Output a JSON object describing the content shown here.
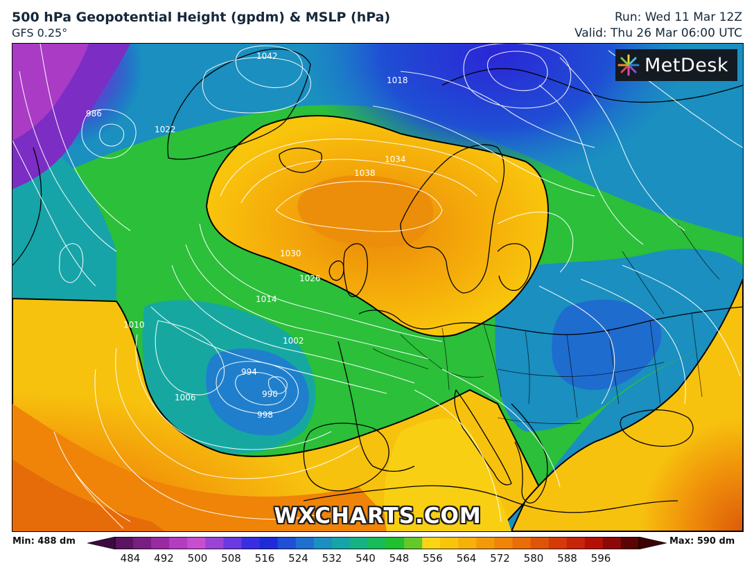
{
  "header": {
    "title": "500 hPa Geopotential Height (gpdm) & MSLP (hPa)",
    "model": "GFS 0.25°",
    "run": "Run: Wed 11 Mar 12Z",
    "valid": "Valid: Thu 26 Mar 06:00 UTC"
  },
  "logo": {
    "text": "MetDesk"
  },
  "watermark": "WXCHARTS.COM",
  "legend": {
    "min_label": "Min: 488 dm",
    "max_label": "Max: 590 dm",
    "ticks": [
      "484",
      "492",
      "500",
      "508",
      "516",
      "524",
      "532",
      "540",
      "548",
      "556",
      "564",
      "572",
      "580",
      "588",
      "596"
    ],
    "colors": [
      "#5a1460",
      "#7a1f82",
      "#9b2aa2",
      "#b53cc0",
      "#c84ed0",
      "#9a44d6",
      "#6a3ae0",
      "#3a2fe0",
      "#1f2bd8",
      "#1e4fd6",
      "#1f6fcf",
      "#1a8fc0",
      "#16a4a8",
      "#15b286",
      "#18bb5a",
      "#20c02e",
      "#64c82a",
      "#f8d515",
      "#f9c40c",
      "#f7b00a",
      "#f39a0a",
      "#ef8409",
      "#e96d09",
      "#e05409",
      "#d53b08",
      "#c82408",
      "#b21206",
      "#8e0808",
      "#5a0404"
    ],
    "min_arrow_color": "#3c0a40",
    "max_arrow_color": "#3a0202"
  },
  "isobars": [
    {
      "label": "1042"
    },
    {
      "label": "1038"
    },
    {
      "label": "1034"
    },
    {
      "label": "1030"
    },
    {
      "label": "1026"
    },
    {
      "label": "1022"
    },
    {
      "label": "1018"
    },
    {
      "label": "1014"
    },
    {
      "label": "1010"
    },
    {
      "label": "1006"
    },
    {
      "label": "1002"
    },
    {
      "label": "998"
    },
    {
      "label": "994"
    },
    {
      "label": "990"
    },
    {
      "label": "986"
    }
  ],
  "colors": {
    "header_text": "#15283a",
    "map_border": "#000000"
  }
}
